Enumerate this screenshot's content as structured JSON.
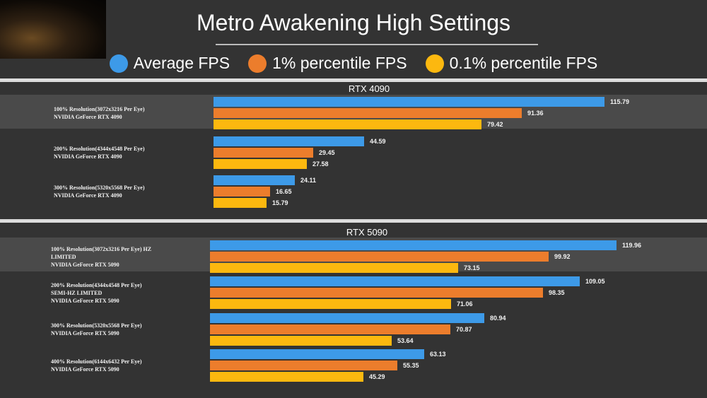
{
  "title": "Metro Awakening High Settings",
  "legend": [
    {
      "label": "Average FPS",
      "color": "#3d9ae8"
    },
    {
      "label": "1% percentile FPS",
      "color": "#ec7d2c"
    },
    {
      "label": "0.1% percentile FPS",
      "color": "#fcb80f"
    }
  ],
  "chart_data": [
    {
      "type": "bar",
      "orientation": "horizontal",
      "title": "RTX 4090",
      "categories": [
        "100% Resolution(3072x3216 Per Eye)\nNVIDIA GeForce RTX 4090",
        "200% Resolution(4344x4548 Per Eye)\nNVIDIA GeForce RTX 4090",
        "300% Resolution(5320x5568 Per Eye)\nNVIDIA GeForce RTX 4090"
      ],
      "series": [
        {
          "name": "Average FPS",
          "color": "#3d9ae8",
          "values": [
            115.79,
            44.59,
            24.11
          ]
        },
        {
          "name": "1% percentile FPS",
          "color": "#ec7d2c",
          "values": [
            91.36,
            29.45,
            16.65
          ]
        },
        {
          "name": "0.1% percentile FPS",
          "color": "#fcb80f",
          "values": [
            79.42,
            27.58,
            15.79
          ]
        }
      ],
      "highlighted_category": 0
    },
    {
      "type": "bar",
      "orientation": "horizontal",
      "title": "RTX 5090",
      "categories": [
        "100% Resolution(3072x3216 Per Eye) HZ\nLIMITED\nNVIDIA GeForce RTX 5090",
        "200% Resolution(4344x4548 Per Eye)\nSEMI-HZ LIMITED\nNVIDIA GeForce RTX 5090",
        "300% Resolution(5320x5568 Per Eye)\nNVIDIA GeForce RTX 5090",
        "400% Resolution(6144x6432 Per Eye)\nNVIDIA GeForce RTX 5090"
      ],
      "series": [
        {
          "name": "Average FPS",
          "color": "#3d9ae8",
          "values": [
            119.96,
            109.05,
            80.94,
            63.13
          ]
        },
        {
          "name": "1% percentile FPS",
          "color": "#ec7d2c",
          "values": [
            99.92,
            98.35,
            70.87,
            55.35
          ]
        },
        {
          "name": "0.1% percentile FPS",
          "color": "#fcb80f",
          "values": [
            73.15,
            71.06,
            53.64,
            45.29
          ]
        }
      ],
      "highlighted_category": 0
    }
  ]
}
